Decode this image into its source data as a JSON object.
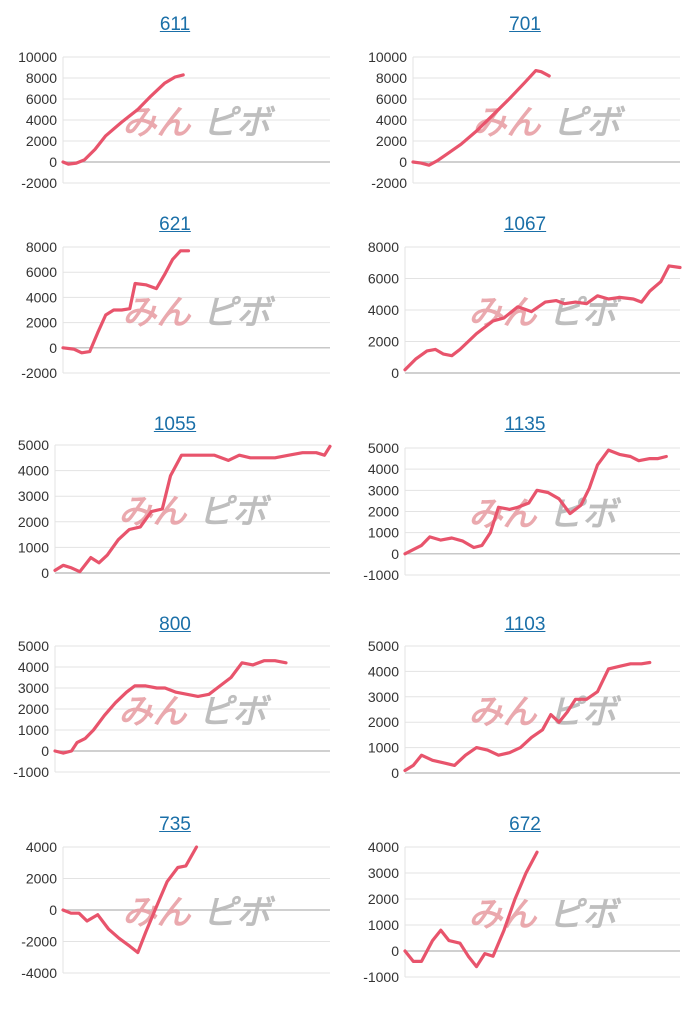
{
  "colors": {
    "series": "#e8546c",
    "title_link": "#1a6fa8",
    "watermark_left": "#e8a0a6",
    "watermark_right": "#b8b8b8"
  },
  "watermark": {
    "left": "みん",
    "right": "ピボ"
  },
  "chart_data": [
    {
      "type": "line",
      "title": "611",
      "ylim": [
        -2000,
        10000
      ],
      "yticks": [
        -2000,
        0,
        2000,
        4000,
        6000,
        8000,
        10000
      ],
      "xlim": [
        0,
        100
      ],
      "series": [
        {
          "values": [
            [
              0,
              0
            ],
            [
              2,
              -200
            ],
            [
              5,
              -100
            ],
            [
              8,
              200
            ],
            [
              12,
              1200
            ],
            [
              16,
              2500
            ],
            [
              22,
              3800
            ],
            [
              28,
              5000
            ],
            [
              33,
              6300
            ],
            [
              38,
              7500
            ],
            [
              42,
              8100
            ],
            [
              45,
              8300
            ]
          ]
        }
      ]
    },
    {
      "type": "line",
      "title": "701",
      "ylim": [
        -2000,
        10000
      ],
      "yticks": [
        -2000,
        0,
        2000,
        4000,
        6000,
        8000,
        10000
      ],
      "xlim": [
        0,
        100
      ],
      "series": [
        {
          "values": [
            [
              0,
              0
            ],
            [
              3,
              -100
            ],
            [
              6,
              -300
            ],
            [
              9,
              100
            ],
            [
              13,
              800
            ],
            [
              18,
              1700
            ],
            [
              24,
              3000
            ],
            [
              30,
              4500
            ],
            [
              36,
              6000
            ],
            [
              42,
              7600
            ],
            [
              46,
              8700
            ],
            [
              48,
              8600
            ],
            [
              51,
              8200
            ]
          ]
        }
      ]
    },
    {
      "type": "line",
      "title": "621",
      "ylim": [
        -2000,
        8000
      ],
      "yticks": [
        -2000,
        0,
        2000,
        4000,
        6000,
        8000
      ],
      "xlim": [
        0,
        100
      ],
      "series": [
        {
          "values": [
            [
              0,
              0
            ],
            [
              4,
              -100
            ],
            [
              7,
              -400
            ],
            [
              10,
              -300
            ],
            [
              13,
              1200
            ],
            [
              16,
              2600
            ],
            [
              19,
              3000
            ],
            [
              22,
              3000
            ],
            [
              25,
              3100
            ],
            [
              27,
              5100
            ],
            [
              31,
              5000
            ],
            [
              35,
              4700
            ],
            [
              38,
              5800
            ],
            [
              41,
              7000
            ],
            [
              44,
              7700
            ],
            [
              47,
              7700
            ]
          ]
        }
      ]
    },
    {
      "type": "line",
      "title": "1067",
      "ylim": [
        0,
        8000
      ],
      "yticks": [
        0,
        2000,
        4000,
        6000,
        8000
      ],
      "xlim": [
        0,
        100
      ],
      "series": [
        {
          "values": [
            [
              0,
              200
            ],
            [
              4,
              900
            ],
            [
              8,
              1400
            ],
            [
              11,
              1500
            ],
            [
              14,
              1200
            ],
            [
              17,
              1100
            ],
            [
              20,
              1500
            ],
            [
              26,
              2500
            ],
            [
              32,
              3300
            ],
            [
              36,
              3500
            ],
            [
              41,
              4200
            ],
            [
              46,
              3900
            ],
            [
              51,
              4500
            ],
            [
              55,
              4600
            ],
            [
              58,
              4400
            ],
            [
              62,
              4500
            ],
            [
              66,
              4400
            ],
            [
              70,
              4900
            ],
            [
              74,
              4700
            ],
            [
              78,
              4800
            ],
            [
              83,
              4700
            ],
            [
              86,
              4500
            ],
            [
              89,
              5200
            ],
            [
              93,
              5800
            ],
            [
              96,
              6800
            ],
            [
              100,
              6700
            ]
          ]
        }
      ]
    },
    {
      "type": "line",
      "title": "1055",
      "ylim": [
        0,
        5000
      ],
      "yticks": [
        0,
        1000,
        2000,
        3000,
        4000,
        5000
      ],
      "xlim": [
        0,
        100
      ],
      "series": [
        {
          "values": [
            [
              0,
              100
            ],
            [
              3,
              300
            ],
            [
              6,
              200
            ],
            [
              9,
              50
            ],
            [
              13,
              600
            ],
            [
              16,
              400
            ],
            [
              19,
              700
            ],
            [
              23,
              1300
            ],
            [
              27,
              1700
            ],
            [
              31,
              1800
            ],
            [
              35,
              2400
            ],
            [
              39,
              2500
            ],
            [
              42,
              3800
            ],
            [
              46,
              4600
            ],
            [
              52,
              4600
            ],
            [
              58,
              4600
            ],
            [
              63,
              4400
            ],
            [
              67,
              4600
            ],
            [
              71,
              4500
            ],
            [
              75,
              4500
            ],
            [
              80,
              4500
            ],
            [
              85,
              4600
            ],
            [
              90,
              4700
            ],
            [
              95,
              4700
            ],
            [
              98,
              4600
            ],
            [
              100,
              4950
            ]
          ]
        }
      ]
    },
    {
      "type": "line",
      "title": "1135",
      "ylim": [
        -1000,
        5000
      ],
      "yticks": [
        -1000,
        0,
        1000,
        2000,
        3000,
        4000,
        5000
      ],
      "xlim": [
        0,
        100
      ],
      "series": [
        {
          "values": [
            [
              0,
              0
            ],
            [
              3,
              200
            ],
            [
              6,
              400
            ],
            [
              9,
              800
            ],
            [
              13,
              650
            ],
            [
              17,
              750
            ],
            [
              21,
              600
            ],
            [
              25,
              300
            ],
            [
              28,
              400
            ],
            [
              31,
              1000
            ],
            [
              34,
              2200
            ],
            [
              38,
              2100
            ],
            [
              41,
              2200
            ],
            [
              45,
              2400
            ],
            [
              48,
              3000
            ],
            [
              52,
              2900
            ],
            [
              56,
              2600
            ],
            [
              60,
              1900
            ],
            [
              64,
              2300
            ],
            [
              67,
              3100
            ],
            [
              70,
              4200
            ],
            [
              74,
              4900
            ],
            [
              78,
              4700
            ],
            [
              82,
              4600
            ],
            [
              85,
              4400
            ],
            [
              89,
              4500
            ],
            [
              92,
              4500
            ],
            [
              95,
              4600
            ]
          ]
        }
      ]
    },
    {
      "type": "line",
      "title": "800",
      "ylim": [
        -1000,
        5000
      ],
      "yticks": [
        -1000,
        0,
        1000,
        2000,
        3000,
        4000,
        5000
      ],
      "xlim": [
        0,
        100
      ],
      "series": [
        {
          "values": [
            [
              0,
              0
            ],
            [
              3,
              -100
            ],
            [
              6,
              0
            ],
            [
              8,
              400
            ],
            [
              11,
              600
            ],
            [
              14,
              1000
            ],
            [
              18,
              1700
            ],
            [
              22,
              2300
            ],
            [
              26,
              2800
            ],
            [
              29,
              3100
            ],
            [
              33,
              3100
            ],
            [
              37,
              3000
            ],
            [
              40,
              3000
            ],
            [
              44,
              2800
            ],
            [
              48,
              2700
            ],
            [
              52,
              2600
            ],
            [
              56,
              2700
            ],
            [
              60,
              3100
            ],
            [
              64,
              3500
            ],
            [
              68,
              4200
            ],
            [
              72,
              4100
            ],
            [
              76,
              4300
            ],
            [
              80,
              4300
            ],
            [
              84,
              4200
            ]
          ]
        }
      ]
    },
    {
      "type": "line",
      "title": "1103",
      "ylim": [
        0,
        5000
      ],
      "yticks": [
        0,
        1000,
        2000,
        3000,
        4000,
        5000
      ],
      "xlim": [
        0,
        100
      ],
      "series": [
        {
          "values": [
            [
              0,
              100
            ],
            [
              3,
              300
            ],
            [
              6,
              700
            ],
            [
              10,
              500
            ],
            [
              14,
              400
            ],
            [
              18,
              300
            ],
            [
              22,
              700
            ],
            [
              26,
              1000
            ],
            [
              30,
              900
            ],
            [
              34,
              700
            ],
            [
              38,
              800
            ],
            [
              42,
              1000
            ],
            [
              46,
              1400
            ],
            [
              50,
              1700
            ],
            [
              53,
              2300
            ],
            [
              56,
              2000
            ],
            [
              59,
              2400
            ],
            [
              62,
              2900
            ],
            [
              66,
              2900
            ],
            [
              70,
              3200
            ],
            [
              74,
              4100
            ],
            [
              78,
              4200
            ],
            [
              82,
              4300
            ],
            [
              86,
              4300
            ],
            [
              89,
              4350
            ]
          ]
        }
      ]
    },
    {
      "type": "line",
      "title": "735",
      "ylim": [
        -4000,
        4000
      ],
      "yticks": [
        -4000,
        -2000,
        0,
        2000,
        4000
      ],
      "xlim": [
        0,
        100
      ],
      "series": [
        {
          "values": [
            [
              0,
              0
            ],
            [
              3,
              -200
            ],
            [
              6,
              -200
            ],
            [
              9,
              -700
            ],
            [
              13,
              -300
            ],
            [
              17,
              -1200
            ],
            [
              21,
              -1800
            ],
            [
              25,
              -2300
            ],
            [
              28,
              -2700
            ],
            [
              31,
              -1400
            ],
            [
              35,
              200
            ],
            [
              39,
              1800
            ],
            [
              43,
              2700
            ],
            [
              46,
              2800
            ],
            [
              50,
              4000
            ]
          ]
        }
      ]
    },
    {
      "type": "line",
      "title": "672",
      "ylim": [
        -1000,
        4000
      ],
      "yticks": [
        -1000,
        0,
        1000,
        2000,
        3000,
        4000
      ],
      "xlim": [
        0,
        100
      ],
      "series": [
        {
          "values": [
            [
              0,
              0
            ],
            [
              3,
              -400
            ],
            [
              6,
              -400
            ],
            [
              10,
              400
            ],
            [
              13,
              800
            ],
            [
              16,
              400
            ],
            [
              20,
              300
            ],
            [
              23,
              -200
            ],
            [
              26,
              -600
            ],
            [
              29,
              -100
            ],
            [
              32,
              -200
            ],
            [
              36,
              800
            ],
            [
              40,
              2000
            ],
            [
              44,
              3000
            ],
            [
              48,
              3800
            ]
          ]
        }
      ]
    }
  ]
}
